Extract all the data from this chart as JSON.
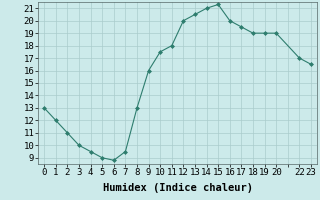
{
  "x": [
    0,
    1,
    2,
    3,
    4,
    5,
    6,
    7,
    8,
    9,
    10,
    11,
    12,
    13,
    14,
    15,
    16,
    17,
    18,
    19,
    20,
    22,
    23
  ],
  "y": [
    13.0,
    12.0,
    11.0,
    10.0,
    9.5,
    9.0,
    8.8,
    9.5,
    13.0,
    16.0,
    17.5,
    18.0,
    20.0,
    20.5,
    21.0,
    21.3,
    20.0,
    19.5,
    19.0,
    19.0,
    19.0,
    17.0,
    16.5
  ],
  "xlabel": "Humidex (Indice chaleur)",
  "xlim": [
    -0.5,
    23.5
  ],
  "ylim": [
    8.5,
    21.5
  ],
  "yticks": [
    9,
    10,
    11,
    12,
    13,
    14,
    15,
    16,
    17,
    18,
    19,
    20,
    21
  ],
  "xtick_labels": [
    "0",
    "1",
    "2",
    "3",
    "4",
    "5",
    "6",
    "7",
    "8",
    "9",
    "10",
    "11",
    "12",
    "13",
    "14",
    "15",
    "16",
    "17",
    "18",
    "19",
    "20",
    "",
    "22",
    "23"
  ],
  "xtick_positions": [
    0,
    1,
    2,
    3,
    4,
    5,
    6,
    7,
    8,
    9,
    10,
    11,
    12,
    13,
    14,
    15,
    16,
    17,
    18,
    19,
    20,
    21,
    22,
    23
  ],
  "line_color": "#2e7d6e",
  "marker_color": "#2e7d6e",
  "bg_color": "#cceaea",
  "grid_color": "#aacccc",
  "xlabel_fontsize": 7.5,
  "tick_fontsize": 6.5
}
